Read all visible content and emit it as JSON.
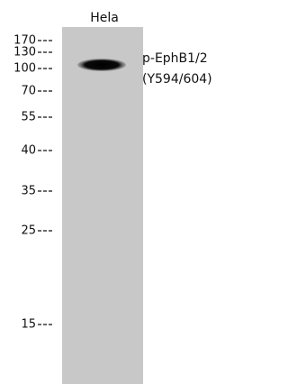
{
  "lane_label": "Hela",
  "markers": [
    "170",
    "130",
    "100",
    "70",
    "55",
    "40",
    "35",
    "25",
    "15"
  ],
  "protein": {
    "name": "p-EphB1/2",
    "site": "(Y594/604)"
  }
}
